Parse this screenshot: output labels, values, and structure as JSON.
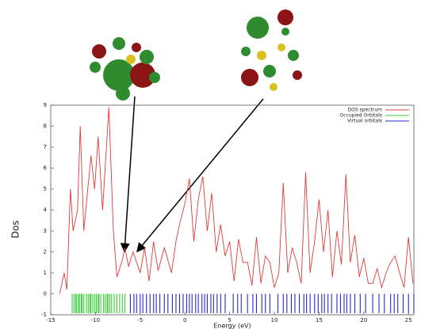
{
  "chart_data": {
    "type": "line",
    "ylabel": "Dos",
    "xlabel": "Energy (eV)",
    "xlim": [
      -15,
      25.6
    ],
    "ylim": [
      -1,
      9
    ],
    "xticks": [
      -15,
      -10,
      -5,
      0,
      5,
      10,
      15,
      20,
      25
    ],
    "yticks": [
      -1,
      0,
      1,
      2,
      3,
      4,
      5,
      6,
      7,
      8,
      9
    ],
    "legend": "upper right",
    "series": [
      {
        "name": "DOS spectrum",
        "color": "#e03a3a",
        "kind": "line",
        "x": [
          -14,
          -13.5,
          -13.2,
          -12.8,
          -12.5,
          -12,
          -11.7,
          -11.3,
          -10.5,
          -10.1,
          -9.7,
          -9.2,
          -8.5,
          -8,
          -7.6,
          -7,
          -6.7,
          -6.3,
          -5.8,
          -5,
          -4.5,
          -4,
          -3.5,
          -3,
          -2.3,
          -1.5,
          -1,
          -0.5,
          0,
          0.5,
          1,
          1.5,
          2,
          2.5,
          3,
          3.5,
          4,
          4.5,
          5,
          5.5,
          6,
          6.5,
          7,
          7.5,
          8,
          8.5,
          9,
          9.5,
          10,
          10.5,
          11,
          11.5,
          12,
          12.5,
          13,
          13.5,
          14,
          14.5,
          15,
          15.5,
          16,
          16.5,
          17,
          17.5,
          18,
          18.5,
          19,
          19.5,
          20,
          20.5,
          21,
          21.5,
          22,
          22.5,
          23,
          23.5,
          24,
          24.5,
          25,
          25.5
        ],
        "values": [
          0,
          1,
          0.2,
          5,
          3,
          4,
          8,
          3,
          6.6,
          5,
          7.5,
          4,
          8.9,
          3,
          0.8,
          1.6,
          2.2,
          1.3,
          2,
          1,
          2.2,
          0.6,
          2.5,
          1.1,
          2.2,
          1,
          2.5,
          3.5,
          4.3,
          5.5,
          2.5,
          4.5,
          5.6,
          3,
          4.8,
          2,
          3.3,
          1.8,
          2.5,
          0.6,
          2.6,
          1.5,
          1.5,
          0.4,
          2.7,
          0.5,
          1.8,
          1.5,
          0.3,
          1,
          5.3,
          1,
          2.2,
          1.5,
          0.5,
          5.8,
          1,
          2.5,
          4.5,
          2,
          4,
          0.8,
          3,
          1.4,
          5.7,
          1.5,
          2.8,
          0.8,
          1.7,
          0.5,
          0.5,
          1.2,
          0.3,
          1,
          1.5,
          1.8,
          1,
          0.3,
          2.7,
          0.5
        ]
      },
      {
        "name": "Occupied Orbitals",
        "color": "#3ccf3c",
        "kind": "rug",
        "x": [
          -12.6,
          -12.4,
          -12.2,
          -12.1,
          -11.9,
          -11.8,
          -11.6,
          -11.5,
          -11.3,
          -11.0,
          -10.8,
          -10.6,
          -10.5,
          -10.3,
          -10.1,
          -9.9,
          -9.7,
          -9.6,
          -9.4,
          -9.1,
          -8.9,
          -8.7,
          -8.6,
          -8.4,
          -8.2,
          -7.9,
          -7.6,
          -7.3,
          -7.0,
          -6.7
        ]
      },
      {
        "name": "Virtual orbitals",
        "color": "#2a2ad0",
        "kind": "rug",
        "x": [
          -6.1,
          -5.7,
          -5.4,
          -5.0,
          -4.7,
          -4.3,
          -3.9,
          -3.5,
          -3.2,
          -2.8,
          -2.3,
          -1.9,
          -1.4,
          -1.0,
          -0.6,
          -0.2,
          0.2,
          0.5,
          0.8,
          1.2,
          1.5,
          1.9,
          2.2,
          2.5,
          2.9,
          3.2,
          3.6,
          4.0,
          4.5,
          5.4,
          5.9,
          6.3,
          7.0,
          7.6,
          8.0,
          8.6,
          9.0,
          9.5,
          10.4,
          11.0,
          11.4,
          11.9,
          12.3,
          12.8,
          13.3,
          13.6,
          14.0,
          14.5,
          14.9,
          15.3,
          15.6,
          16.0,
          16.4,
          17.0,
          17.4,
          17.8,
          18.1,
          18.5,
          19.0,
          19.6,
          20.2,
          21.0,
          21.7,
          22.3,
          23.0,
          23.4,
          23.8,
          24.4,
          25.0,
          25.6
        ]
      }
    ]
  }
}
